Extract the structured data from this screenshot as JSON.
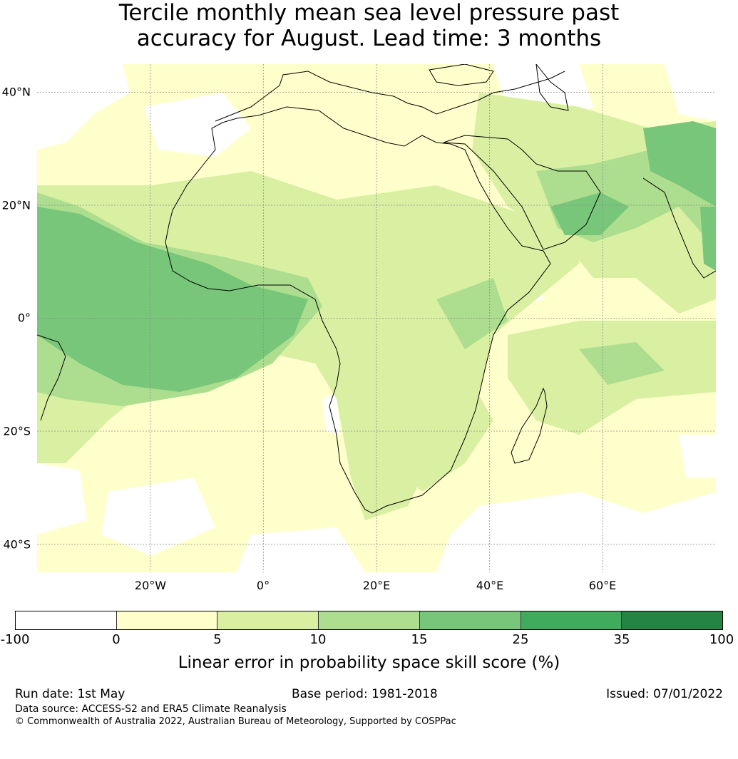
{
  "title_line1": "Tercile monthly mean sea level pressure past",
  "title_line2": "accuracy for August. Lead time: 3 months",
  "map": {
    "projection": "plate-carree",
    "lon_range": [
      -40,
      80
    ],
    "lat_range": [
      -45,
      45
    ],
    "lat_ticks": [
      "40°N",
      "20°N",
      "0°",
      "20°S",
      "40°S"
    ],
    "lon_ticks": [
      "20°W",
      "0°",
      "20°E",
      "40°E",
      "60°E"
    ],
    "grid": true,
    "coastline_color": "#000000",
    "field_colors": {
      "below_0": "#ffffff",
      "0_5": "#ffffcc",
      "5_10": "#d9f0a3",
      "10_15": "#addd8e",
      "15_25": "#78c679",
      "25_35": "#41ab5d",
      "35_100": "#238443"
    }
  },
  "colorbar": {
    "tick_labels": [
      "-100",
      "0",
      "5",
      "10",
      "15",
      "25",
      "35",
      "100"
    ],
    "colors": [
      "#ffffff",
      "#ffffcc",
      "#d9f0a3",
      "#addd8e",
      "#78c679",
      "#41ab5d",
      "#238443"
    ],
    "label": "Linear error in probability space skill score (%)"
  },
  "footer": {
    "run_date": "Run date: 1st May",
    "base_period": "Base period: 1981-2018",
    "issued": "Issued: 07/01/2022",
    "data_source": "Data source: ACCESS-S2 and ERA5 Climate Reanalysis",
    "copyright": "© Commonwealth of Australia 2022, Australian Bureau of Meteorology, Supported by COSPPac"
  }
}
